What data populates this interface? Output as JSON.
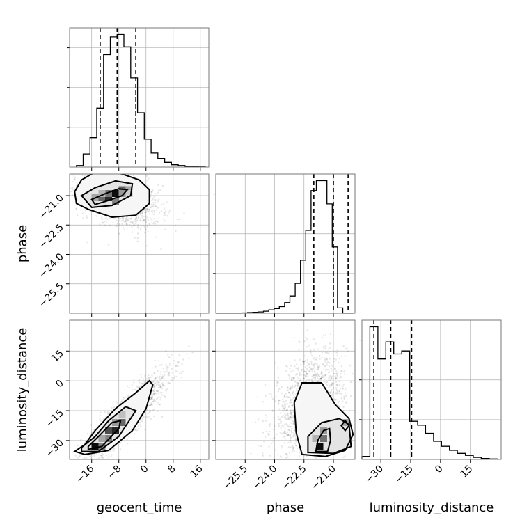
{
  "chart_data": {
    "type": "corner",
    "parameters": [
      "geocent_time",
      "phase",
      "luminosity_distance"
    ],
    "axes": {
      "geocent_time": {
        "range": [
          -22.5,
          18.5
        ],
        "ticks": [
          -16,
          -8,
          0,
          8,
          16
        ],
        "tick_labels": [
          "−16",
          "−8",
          "0",
          "8",
          "16"
        ]
      },
      "phase": {
        "range": [
          -27.0,
          -19.9
        ],
        "ticks": [
          -25.5,
          -24.0,
          -22.5,
          -21.0
        ],
        "tick_labels": [
          "−25.5",
          "−24.0",
          "−22.5",
          "−21.0"
        ]
      },
      "luminosity_distance": {
        "range": [
          -39.5,
          30.5
        ],
        "ticks": [
          -30,
          -15,
          0,
          15
        ],
        "tick_labels": [
          "−30",
          "−15",
          "0",
          "15"
        ]
      }
    },
    "histograms": [
      {
        "param": "geocent_time",
        "bin_edges": [
          -20.5,
          -18.5,
          -16.5,
          -14.5,
          -12.5,
          -10.5,
          -8.5,
          -6.5,
          -4.5,
          -2.5,
          -0.5,
          1.5,
          3.5,
          5.5,
          7.5,
          9.5,
          11.5,
          13.5,
          15.5,
          17.5
        ],
        "counts": [
          2,
          17,
          38,
          76,
          145,
          168,
          171,
          155,
          115,
          70,
          36,
          18,
          11,
          6,
          3,
          2,
          1,
          0.5,
          0.2
        ],
        "quantiles": [
          -13.5,
          -8.5,
          -3.0
        ]
      },
      {
        "param": "phase",
        "bin_edges": [
          -27.0,
          -26.73,
          -26.46,
          -26.19,
          -25.92,
          -25.65,
          -25.38,
          -25.11,
          -24.84,
          -24.57,
          -24.3,
          -24.03,
          -23.76,
          -23.49,
          -23.22,
          -22.95,
          -22.68,
          -22.41,
          -22.14,
          -21.87,
          -21.6,
          -21.33,
          -21.06,
          -20.79,
          -20.52,
          -20.25,
          -19.98
        ],
        "counts": [
          0,
          0,
          0,
          0,
          0,
          0.5,
          1,
          1.5,
          2,
          3,
          5,
          7,
          10,
          16,
          26,
          45,
          80,
          125,
          185,
          200,
          200,
          165,
          100,
          8,
          0,
          0
        ],
        "quantiles": [
          -22.0,
          -21.0,
          -20.25
        ]
      },
      {
        "param": "luminosity_distance",
        "bin_edges": [
          -39.5,
          -35.5,
          -31.5,
          -27.5,
          -23.5,
          -19.5,
          -15.5,
          -11.5,
          -7.5,
          -3.5,
          0.5,
          4.5,
          8.5,
          12.5,
          16.5,
          20.5,
          24.5,
          28.5
        ],
        "counts": [
          3,
          132,
          100,
          117,
          105,
          108,
          38,
          34,
          26,
          18,
          13,
          9,
          6,
          4,
          2,
          1,
          0.5
        ],
        "quantiles": [
          -33.5,
          -25.0,
          -14.5
        ]
      }
    ],
    "scatter_panels": [
      {
        "x": "geocent_time",
        "y": "phase",
        "center": [
          -8,
          -21.1
        ],
        "sd": [
          6.0,
          0.75
        ],
        "corr": -0.45,
        "contours": [
          [
            [
              -21,
              -20.8
            ],
            [
              -19,
              -20.2
            ],
            [
              -14,
              -19.7
            ],
            [
              -7,
              -19.9
            ],
            [
              -2,
              -20.2
            ],
            [
              1,
              -20.7
            ],
            [
              1,
              -21.4
            ],
            [
              -3,
              -22.0
            ],
            [
              -10,
              -22.1
            ],
            [
              -17,
              -21.7
            ],
            [
              -20.5,
              -21.4
            ]
          ],
          [
            [
              -19,
              -21.0
            ],
            [
              -15,
              -20.6
            ],
            [
              -9,
              -20.25
            ],
            [
              -4,
              -20.4
            ],
            [
              -4.5,
              -21.0
            ],
            [
              -10,
              -21.5
            ],
            [
              -16,
              -21.6
            ]
          ],
          [
            [
              -16,
              -21.2
            ],
            [
              -12,
              -20.9
            ],
            [
              -8,
              -20.65
            ],
            [
              -5.5,
              -20.7
            ],
            [
              -7,
              -21.0
            ],
            [
              -12,
              -21.3
            ],
            [
              -15,
              -21.45
            ]
          ]
        ],
        "hist_cells": [
          [
            -13,
            -21.1,
            0.6
          ],
          [
            -11,
            -21.1,
            0.85
          ],
          [
            -9,
            -20.9,
            0.95
          ],
          [
            -7,
            -20.7,
            0.6
          ],
          [
            -9,
            -21.3,
            0.5
          ],
          [
            -11,
            -20.9,
            0.55
          ],
          [
            -5,
            -20.7,
            0.35
          ],
          [
            -15,
            -21.1,
            0.35
          ],
          [
            -7,
            -20.9,
            0.4
          ],
          [
            -5,
            -20.9,
            0.2
          ],
          [
            -13,
            -20.9,
            0.3
          ]
        ]
      },
      {
        "x": "geocent_time",
        "y": "luminosity_distance",
        "center": [
          -6,
          -18
        ],
        "sd": [
          6.5,
          11.5
        ],
        "corr": 0.9,
        "contours": [
          [
            [
              -21,
              -35.5
            ],
            [
              -18,
              -37
            ],
            [
              -11,
              -35
            ],
            [
              -4,
              -25
            ],
            [
              0,
              -14
            ],
            [
              2,
              -2
            ],
            [
              1,
              0
            ],
            [
              -3,
              -6
            ],
            [
              -9,
              -14
            ],
            [
              -15,
              -25
            ],
            [
              -18,
              -32
            ],
            [
              -21,
              -35.5
            ]
          ],
          [
            [
              -19,
              -35.5
            ],
            [
              -14,
              -35.5
            ],
            [
              -8,
              -28
            ],
            [
              -3,
              -15
            ],
            [
              -6,
              -13
            ],
            [
              -11,
              -20
            ],
            [
              -15,
              -28
            ],
            [
              -19,
              -33.5
            ]
          ],
          [
            [
              -17,
              -34.5
            ],
            [
              -13,
              -33
            ],
            [
              -8,
              -24
            ],
            [
              -7.5,
              -20
            ],
            [
              -10,
              -21
            ],
            [
              -14,
              -28
            ],
            [
              -17,
              -33
            ]
          ]
        ],
        "hist_cells": [
          [
            -15,
            -33,
            0.95
          ],
          [
            -13,
            -33,
            0.5
          ],
          [
            -11,
            -25,
            0.7
          ],
          [
            -9,
            -25,
            0.85
          ],
          [
            -7,
            -21,
            0.6
          ],
          [
            -9,
            -21,
            0.4
          ],
          [
            -11,
            -29,
            0.5
          ],
          [
            -13,
            -29,
            0.35
          ],
          [
            -7,
            -17,
            0.25
          ]
        ]
      },
      {
        "x": "phase",
        "y": "luminosity_distance",
        "center": [
          -22.2,
          -12
        ],
        "sd": [
          0.9,
          13
        ],
        "corr": 0.3,
        "contours": [
          [
            [
              -22.6,
              -37
            ],
            [
              -21.4,
              -38
            ],
            [
              -20.4,
              -35
            ],
            [
              -20.0,
              -27
            ],
            [
              -20.2,
              -19
            ],
            [
              -20.9,
              -12
            ],
            [
              -21.6,
              -1
            ],
            [
              -22.6,
              -1
            ],
            [
              -23.0,
              -11
            ],
            [
              -22.9,
              -26
            ],
            [
              -22.6,
              -37
            ]
          ],
          [
            [
              -22.3,
              -36
            ],
            [
              -21.0,
              -36.5
            ],
            [
              -20.1,
              -33
            ],
            [
              -20.2,
              -22
            ],
            [
              -20.7,
              -19
            ],
            [
              -21.6,
              -21
            ],
            [
              -22.3,
              -28
            ],
            [
              -22.3,
              -36
            ]
          ],
          [
            [
              -21.9,
              -35.5
            ],
            [
              -21.3,
              -35.5
            ],
            [
              -21.15,
              -30
            ],
            [
              -21.2,
              -24
            ],
            [
              -21.5,
              -25
            ],
            [
              -21.8,
              -30
            ],
            [
              -21.9,
              -35.5
            ]
          ],
          [
            [
              -20.4,
              -25
            ],
            [
              -20.2,
              -22.5
            ],
            [
              -20.4,
              -20
            ],
            [
              -20.6,
              -22.5
            ],
            [
              -20.4,
              -25
            ]
          ]
        ],
        "hist_cells": [
          [
            -21.7,
            -33,
            0.95
          ],
          [
            -21.5,
            -29,
            0.55
          ],
          [
            -21.5,
            -25,
            0.4
          ],
          [
            -20.4,
            -21,
            0.35
          ],
          [
            -21.9,
            -29,
            0.3
          ]
        ]
      }
    ]
  }
}
